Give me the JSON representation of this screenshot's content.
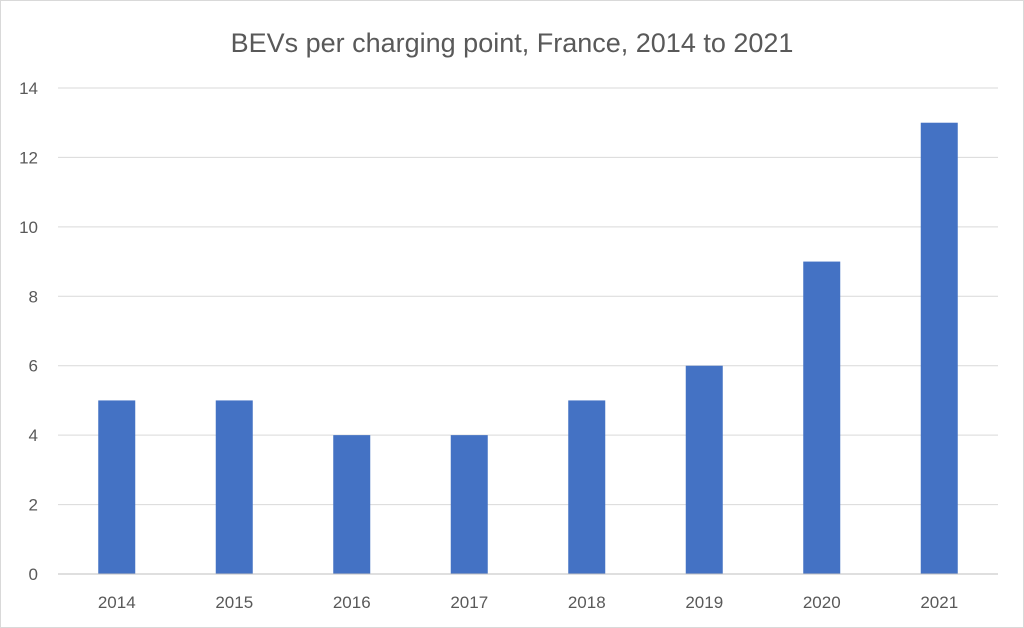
{
  "chart_data": {
    "type": "bar",
    "title": "BEVs per charging point, France, 2014 to 2021",
    "xlabel": "",
    "ylabel": "",
    "categories": [
      "2014",
      "2015",
      "2016",
      "2017",
      "2018",
      "2019",
      "2020",
      "2021"
    ],
    "series": [
      {
        "values": [
          5,
          5,
          4,
          4,
          5,
          6,
          9,
          13
        ],
        "color": "#4472C4"
      }
    ],
    "ylim": [
      0,
      14
    ],
    "yticks": [
      0,
      2,
      4,
      6,
      8,
      10,
      12,
      14
    ],
    "grid": true,
    "legend": "none"
  }
}
